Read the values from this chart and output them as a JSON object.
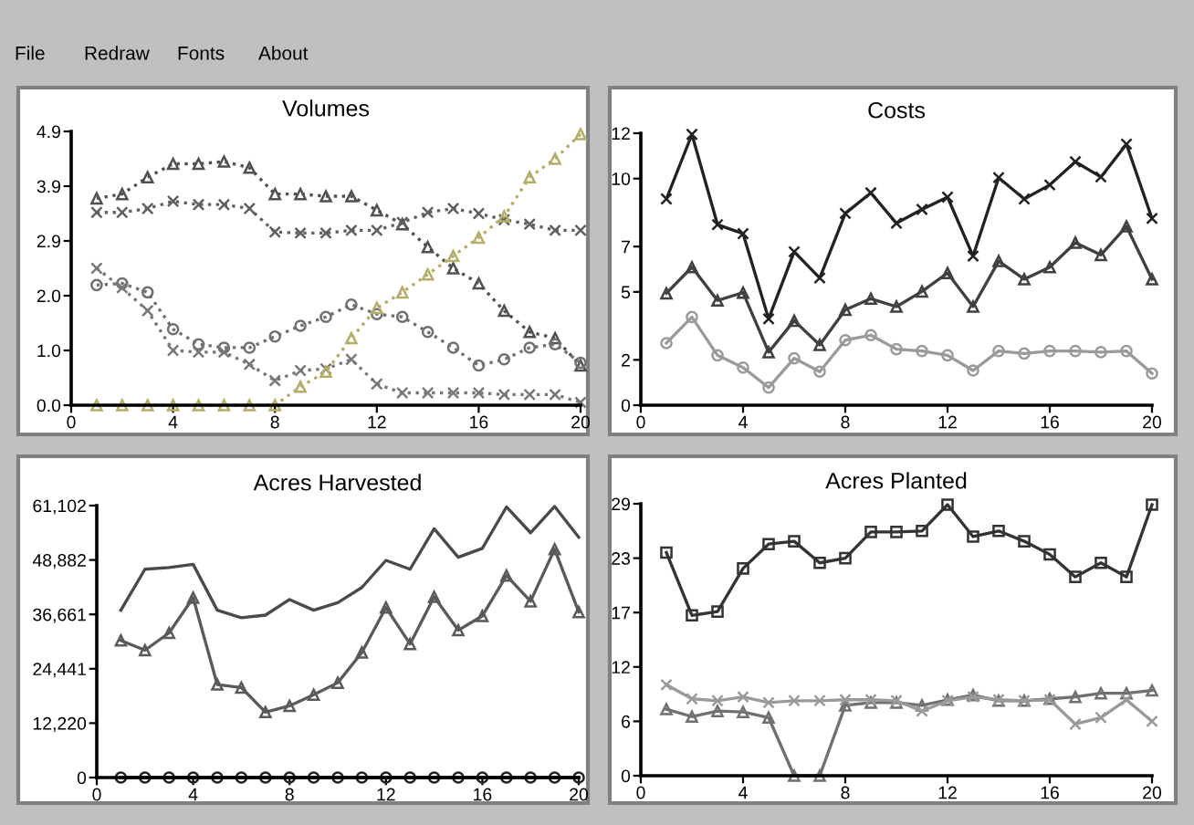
{
  "chart_data": [
    {
      "type": "line",
      "title": "Volumes",
      "annotations": [
        "File",
        "Redraw",
        "Fonts",
        "About"
      ],
      "line_style": "dotted",
      "x": [
        1,
        2,
        3,
        4,
        5,
        6,
        7,
        8,
        9,
        10,
        11,
        12,
        13,
        14,
        15,
        16,
        17,
        18,
        19,
        20
      ],
      "xlim": [
        0,
        20
      ],
      "xticks": [
        0,
        4,
        8,
        12,
        16,
        20
      ],
      "ylim": [
        0,
        4.9
      ],
      "yticks": [
        {
          "value": 0,
          "label": "0.0"
        },
        {
          "value": 0.98,
          "label": "1.0"
        },
        {
          "value": 1.96,
          "label": "2.0"
        },
        {
          "value": 2.94,
          "label": "2.9"
        },
        {
          "value": 3.92,
          "label": "3.9"
        },
        4.9
      ],
      "series": [
        {
          "color": "#505050",
          "marker": "triangle",
          "values": [
            3.7,
            3.78,
            4.08,
            4.32,
            4.32,
            4.36,
            4.25,
            3.78,
            3.78,
            3.74,
            3.74,
            3.49,
            3.24,
            2.83,
            2.45,
            2.18,
            1.69,
            1.31,
            1.2,
            0.71
          ]
        },
        {
          "color": "#606060",
          "marker": "cross",
          "values": [
            3.45,
            3.45,
            3.52,
            3.65,
            3.59,
            3.59,
            3.52,
            3.1,
            3.08,
            3.08,
            3.13,
            3.13,
            3.27,
            3.45,
            3.52,
            3.43,
            3.32,
            3.24,
            3.13,
            3.13
          ]
        },
        {
          "color": "#707070",
          "marker": "circle",
          "values": [
            2.15,
            2.18,
            2.02,
            1.36,
            1.09,
            1.03,
            1.03,
            1.23,
            1.42,
            1.58,
            1.8,
            1.63,
            1.58,
            1.31,
            1.03,
            0.71,
            0.82,
            1.03,
            1.09,
            0.76
          ]
        },
        {
          "color": "#787878",
          "marker": "cross",
          "values": [
            2.45,
            2.1,
            1.69,
            0.98,
            0.95,
            0.95,
            0.73,
            0.44,
            0.62,
            0.65,
            0.82,
            0.38,
            0.22,
            0.22,
            0.22,
            0.22,
            0.19,
            0.19,
            0.19,
            0.05
          ]
        },
        {
          "color": "#b5ad6a",
          "marker": "triangle",
          "values": [
            0,
            0,
            0,
            0,
            0,
            0,
            0,
            0,
            0.33,
            0.6,
            1.2,
            1.74,
            2.02,
            2.34,
            2.67,
            3.0,
            3.38,
            4.08,
            4.41,
            4.85
          ]
        }
      ]
    },
    {
      "type": "line",
      "title": "Costs",
      "line_style": "solid",
      "x": [
        1,
        2,
        3,
        4,
        5,
        6,
        7,
        8,
        9,
        10,
        11,
        12,
        13,
        14,
        15,
        16,
        17,
        18,
        19,
        20
      ],
      "xlim": [
        0,
        20
      ],
      "xticks": [
        0,
        4,
        8,
        12,
        16,
        20
      ],
      "ylim": [
        0,
        12
      ],
      "yticks": [
        0,
        2,
        5,
        7,
        10,
        12
      ],
      "series": [
        {
          "color": "#222222",
          "marker": "cross",
          "values": [
            9.1,
            11.95,
            7.97,
            7.57,
            3.81,
            6.77,
            5.61,
            8.46,
            9.37,
            8.03,
            8.64,
            9.18,
            6.58,
            10.04,
            9.1,
            9.72,
            10.74,
            10.07,
            11.52,
            8.24
          ]
        },
        {
          "color": "#404040",
          "marker": "triangle",
          "values": [
            4.94,
            6.09,
            4.62,
            4.97,
            2.34,
            3.73,
            2.66,
            4.21,
            4.7,
            4.35,
            5.02,
            5.83,
            4.35,
            6.36,
            5.56,
            6.09,
            7.17,
            6.63,
            7.89,
            5.56
          ]
        },
        {
          "color": "#9a9a9a",
          "marker": "circle",
          "values": [
            2.74,
            3.89,
            2.2,
            1.66,
            0.78,
            2.07,
            1.48,
            2.87,
            3.09,
            2.47,
            2.39,
            2.2,
            1.53,
            2.39,
            2.28,
            2.39,
            2.39,
            2.34,
            2.39,
            1.4
          ]
        }
      ]
    },
    {
      "type": "line",
      "title": "Acres Harvested",
      "line_style": "solid",
      "x": [
        1,
        2,
        3,
        4,
        5,
        6,
        7,
        8,
        9,
        10,
        11,
        12,
        13,
        14,
        15,
        16,
        17,
        18,
        19,
        20
      ],
      "xlim": [
        0,
        20
      ],
      "xticks": [
        0,
        4,
        8,
        12,
        16,
        20
      ],
      "ylim": [
        0,
        61102
      ],
      "yticks": [
        0,
        {
          "value": 12220,
          "label": "12,220"
        },
        {
          "value": 24441,
          "label": "24,441"
        },
        {
          "value": 36661,
          "label": "36,661"
        },
        {
          "value": 48882,
          "label": "48,882"
        },
        {
          "value": 61102,
          "label": "61,102"
        }
      ],
      "series": [
        {
          "color": "#4a4a4a",
          "marker": "none",
          "values": [
            37600,
            46800,
            47200,
            47900,
            37600,
            35900,
            36500,
            40000,
            37600,
            39300,
            42700,
            48800,
            46800,
            55900,
            49500,
            51500,
            60800,
            55000,
            60900,
            54000
          ]
        },
        {
          "color": "#5a5a5a",
          "marker": "triangle",
          "values": [
            30800,
            28600,
            32500,
            40400,
            20900,
            20200,
            14700,
            16100,
            18600,
            21300,
            28100,
            38200,
            30000,
            40600,
            33100,
            36300,
            45400,
            39600,
            51300,
            37200
          ]
        },
        {
          "color": "#222222",
          "marker": "circle",
          "values": [
            0,
            0,
            0,
            0,
            0,
            0,
            0,
            0,
            0,
            0,
            0,
            0,
            0,
            0,
            0,
            0,
            0,
            0,
            0,
            0
          ]
        }
      ]
    },
    {
      "type": "line",
      "title": "Acres Planted",
      "line_style": "solid",
      "x": [
        1,
        2,
        3,
        4,
        5,
        6,
        7,
        8,
        9,
        10,
        11,
        12,
        13,
        14,
        15,
        16,
        17,
        18,
        19,
        20
      ],
      "xlim": [
        0,
        20
      ],
      "xticks": [
        0,
        4,
        8,
        12,
        16,
        20
      ],
      "ylim": [
        0,
        29
      ],
      "yticks": [
        0,
        {
          "value": 5.8,
          "label": "6"
        },
        {
          "value": 11.6,
          "label": "12"
        },
        {
          "value": 17.4,
          "label": "17"
        },
        {
          "value": 23.2,
          "label": "23"
        },
        29
      ],
      "series": [
        {
          "color": "#333333",
          "marker": "square",
          "values": [
            23.8,
            17.1,
            17.5,
            22.1,
            24.7,
            25.0,
            22.7,
            23.2,
            26.0,
            26.0,
            26.1,
            28.9,
            25.5,
            26.1,
            25.0,
            23.6,
            21.2,
            22.7,
            21.2,
            28.9
          ]
        },
        {
          "color": "#707070",
          "marker": "triangle",
          "values": [
            7.1,
            6.3,
            6.9,
            6.8,
            6.2,
            0,
            0,
            7.5,
            7.8,
            7.8,
            7.5,
            8.1,
            8.6,
            8.0,
            8.0,
            8.2,
            8.4,
            8.8,
            8.8,
            9.1
          ]
        },
        {
          "color": "#9a9a9a",
          "marker": "cross",
          "values": [
            9.7,
            8.2,
            8.0,
            8.4,
            7.8,
            8.0,
            8.0,
            8.1,
            8.1,
            8.0,
            6.9,
            8.0,
            8.4,
            8.1,
            8.0,
            8.1,
            5.5,
            6.2,
            8.1,
            5.8
          ]
        }
      ]
    }
  ]
}
